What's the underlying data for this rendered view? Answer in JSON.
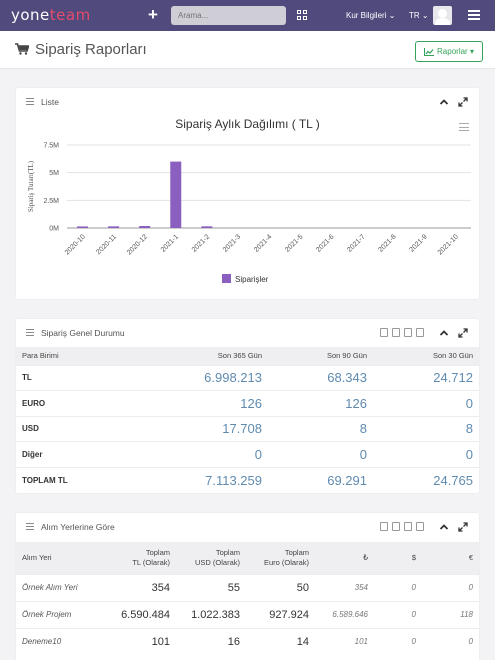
{
  "topbar": {
    "logo_main": "yone",
    "logo_accent": "team",
    "search_placeholder": "Arama...",
    "kur_label": "Kur Bilgileri",
    "lang_label": "TR"
  },
  "header": {
    "title": "Sipariş Raporları",
    "reports_button": "Raporlar"
  },
  "list_panel": {
    "title": "Liste"
  },
  "chart_data": {
    "type": "bar",
    "title": "Sipariş Aylık Dağılımı ( TL )",
    "ylabel": "Sipariş Tutarı(TL)",
    "ylim": [
      0,
      7500000
    ],
    "yticks": [
      0,
      2500000,
      5000000,
      7500000
    ],
    "ytick_labels": [
      "0M",
      "2.5M",
      "5M",
      "7.5M"
    ],
    "categories": [
      "2020-10",
      "2020-11",
      "2020-12",
      "2021-1",
      "2021-2",
      "2021-3",
      "2021-4",
      "2021-5",
      "2021-6",
      "2021-7",
      "2021-8",
      "2021-9",
      "2021-10"
    ],
    "series": [
      {
        "name": "Siparişler",
        "values": [
          140000,
          150000,
          180000,
          6000000,
          150000,
          0,
          0,
          0,
          0,
          0,
          0,
          0,
          0
        ]
      }
    ],
    "legend_position": "bottom",
    "grid": true,
    "color": "#8a5fbf"
  },
  "general_panel": {
    "title": "Sipariş Genel Durumu",
    "columns": [
      "Para Birimi",
      "Son 365 Gün",
      "Son 90 Gün",
      "Son 30 Gün"
    ],
    "rows": [
      {
        "label": "TL",
        "v365": "6.998.213",
        "v90": "68.343",
        "v30": "24.712"
      },
      {
        "label": "EURO",
        "v365": "126",
        "v90": "126",
        "v30": "0"
      },
      {
        "label": "USD",
        "v365": "17.708",
        "v90": "8",
        "v30": "8"
      },
      {
        "label": "Diğer",
        "v365": "0",
        "v90": "0",
        "v30": "0"
      },
      {
        "label": "TOPLAM TL",
        "v365": "7.113.259",
        "v90": "69.291",
        "v30": "24.765"
      }
    ]
  },
  "place_panel": {
    "title": "Alım Yerlerine Göre",
    "columns": {
      "c0": "Alım Yeri",
      "c1a": "Toplam",
      "c1b": "TL (Olarak)",
      "c2a": "Toplam",
      "c2b": "USD (Olarak)",
      "c3a": "Toplam",
      "c3b": "Euro (Olarak)",
      "c4": "₺",
      "c5": "$",
      "c6": "€"
    },
    "rows": [
      {
        "name": "Örnek Alım Yeri",
        "tl": "354",
        "usd": "55",
        "eur": "50",
        "try": "354",
        "d": "0",
        "e": "0"
      },
      {
        "name": "Örnek Projem",
        "tl": "6.590.484",
        "usd": "1.022.383",
        "eur": "927.924",
        "try": "6.589.646",
        "d": "0",
        "e": "118"
      },
      {
        "name": "Deneme10",
        "tl": "101",
        "usd": "16",
        "eur": "14",
        "try": "101",
        "d": "0",
        "e": "0"
      }
    ]
  }
}
